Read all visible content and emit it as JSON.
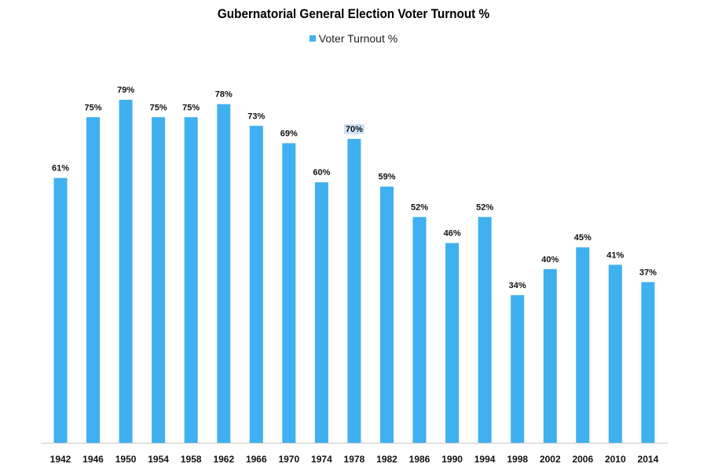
{
  "colors": {
    "bar": "#3fb0f0",
    "axis": "#c8c8c8",
    "highlight": "#cfe3f7"
  },
  "chart_data": {
    "type": "bar",
    "title": "Gubernatorial General Election Voter Turnout %",
    "xlabel": "",
    "ylabel": "",
    "ylim": [
      0,
      80
    ],
    "grid": false,
    "legend_position": "top-center",
    "categories": [
      "1942",
      "1946",
      "1950",
      "1954",
      "1958",
      "1962",
      "1966",
      "1970",
      "1974",
      "1978",
      "1982",
      "1986",
      "1990",
      "1994",
      "1998",
      "2002",
      "2006",
      "2010",
      "2014"
    ],
    "series": [
      {
        "name": "Voter Turnout %",
        "values": [
          61,
          75,
          79,
          75,
          75,
          78,
          73,
          69,
          60,
          70,
          59,
          52,
          46,
          52,
          34,
          40,
          45,
          41,
          37
        ],
        "labels": [
          "61%",
          "75%",
          "79%",
          "75%",
          "75%",
          "78%",
          "73%",
          "69%",
          "60%",
          "70%",
          "59%",
          "52%",
          "46%",
          "52%",
          "34%",
          "40%",
          "45%",
          "41%",
          "37%"
        ]
      }
    ],
    "highlighted_label": "1978"
  }
}
